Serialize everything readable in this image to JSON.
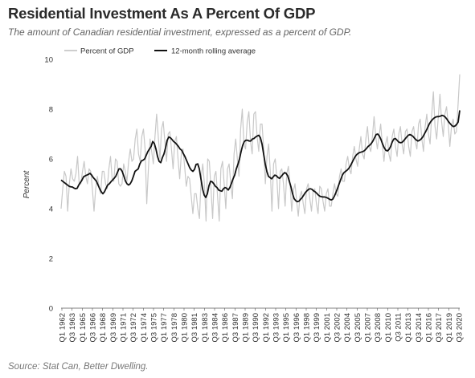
{
  "chart_data": {
    "type": "line",
    "title": "Residential Investment As A Percent Of GDP",
    "subtitle": "The amount of Canadian residential investment, expressed as a percent of GDP.",
    "source": "Source: Stat Can, Better Dwelling.",
    "ylabel": "Percent",
    "xlabel": "",
    "ylim": [
      0,
      10
    ],
    "yticks": [
      0,
      2,
      4,
      6,
      8,
      10
    ],
    "grid": false,
    "legend_position": "top-left",
    "x_tick_labels": [
      "Q1 1962",
      "Q3 1963",
      "Q1 1965",
      "Q3 1966",
      "Q1 1968",
      "Q3 1969",
      "Q1 1971",
      "Q3 1972",
      "Q1 1974",
      "Q3 1975",
      "Q1 1977",
      "Q3 1978",
      "Q1 1980",
      "Q3 1981",
      "Q1 1983",
      "Q3 1984",
      "Q1 1986",
      "Q3 1987",
      "Q1 1989",
      "Q3 1990",
      "Q1 1992",
      "Q3 1993",
      "Q1 1995",
      "Q3 1996",
      "Q1 1998",
      "Q3 1999",
      "Q1 2001",
      "Q3 2002",
      "Q1 2004",
      "Q3 2005",
      "Q1 2007",
      "Q3 2008",
      "Q1 2010",
      "Q3 2011",
      "Q1 2013",
      "Q3 2014",
      "Q1 2016",
      "Q3 2017",
      "Q1 2019",
      "Q3 2020"
    ],
    "series": [
      {
        "name": "Percent of GDP",
        "color": "#c8c8c8",
        "values": [
          4.0,
          4.8,
          5.5,
          5.3,
          3.9,
          5.0,
          5.6,
          5.2,
          5.1,
          5.4,
          6.1,
          5.0,
          5.0,
          5.5,
          5.9,
          5.3,
          5.0,
          5.6,
          5.5,
          4.8,
          3.9,
          4.8,
          5.3,
          4.9,
          4.6,
          5.5,
          5.5,
          5.0,
          4.8,
          5.6,
          6.1,
          5.2,
          5.1,
          6.0,
          5.9,
          5.0,
          4.9,
          5.0,
          5.8,
          5.5,
          5.1,
          5.9,
          6.4,
          5.9,
          6.0,
          6.8,
          7.2,
          6.2,
          5.9,
          6.9,
          7.2,
          6.4,
          4.2,
          5.6,
          6.8,
          6.3,
          5.8,
          6.9,
          7.8,
          6.9,
          6.0,
          7.2,
          7.5,
          6.7,
          5.9,
          7.0,
          7.1,
          6.4,
          5.6,
          6.7,
          6.9,
          6.0,
          5.2,
          6.2,
          6.4,
          5.7,
          4.9,
          5.3,
          5.2,
          4.5,
          3.8,
          4.6,
          4.6,
          4.0,
          3.6,
          5.2,
          5.8,
          5.0,
          3.5,
          6.0,
          5.9,
          4.8,
          3.6,
          5.3,
          5.5,
          4.5,
          3.5,
          5.6,
          5.9,
          5.0,
          4.0,
          5.6,
          5.8,
          5.0,
          4.4,
          6.2,
          6.8,
          6.0,
          5.3,
          7.2,
          8.0,
          6.6,
          6.4,
          7.5,
          7.9,
          6.7,
          6.2,
          7.8,
          7.9,
          6.9,
          6.3,
          7.4,
          7.4,
          6.4,
          5.0,
          6.1,
          6.6,
          5.5,
          3.9,
          5.8,
          6.0,
          5.2,
          4.0,
          5.5,
          5.6,
          5.0,
          4.1,
          5.4,
          5.7,
          5.0,
          3.9,
          4.7,
          5.0,
          4.3,
          3.7,
          4.5,
          4.7,
          4.2,
          3.8,
          4.8,
          5.0,
          4.4,
          3.9,
          4.7,
          4.8,
          4.2,
          3.8,
          4.9,
          4.8,
          4.3,
          3.9,
          4.6,
          4.8,
          4.1,
          4.1,
          4.6,
          5.0,
          4.6,
          4.5,
          5.3,
          5.6,
          5.1,
          5.1,
          5.8,
          6.1,
          5.6,
          5.4,
          6.1,
          6.5,
          6.0,
          5.7,
          6.4,
          6.9,
          6.2,
          6.0,
          6.8,
          7.3,
          6.5,
          6.3,
          6.9,
          7.7,
          6.9,
          6.4,
          6.9,
          7.4,
          6.6,
          5.9,
          6.6,
          6.9,
          6.2,
          5.9,
          6.9,
          7.2,
          6.5,
          6.1,
          7.0,
          7.3,
          6.6,
          6.2,
          7.1,
          7.2,
          6.5,
          6.1,
          7.1,
          7.3,
          6.7,
          6.4,
          7.4,
          7.6,
          6.8,
          6.3,
          7.3,
          7.8,
          7.0,
          6.6,
          7.8,
          8.7,
          7.3,
          6.8,
          7.7,
          8.6,
          7.5,
          6.9,
          7.8,
          8.1,
          7.4,
          6.5,
          7.3,
          7.6,
          7.0,
          7.1,
          8.2,
          9.4
        ],
        "line_width": 1.2
      },
      {
        "name": "12-month rolling average",
        "color": "#111111",
        "values": [
          5.15,
          5.1,
          5.05,
          5.0,
          4.95,
          4.9,
          4.88,
          4.87,
          4.83,
          4.8,
          4.82,
          4.95,
          5.05,
          5.15,
          5.28,
          5.32,
          5.35,
          5.38,
          5.42,
          5.35,
          5.25,
          5.18,
          5.1,
          4.95,
          4.8,
          4.68,
          4.6,
          4.68,
          4.82,
          4.95,
          5.0,
          5.08,
          5.15,
          5.22,
          5.3,
          5.45,
          5.6,
          5.6,
          5.5,
          5.32,
          5.12,
          5.0,
          4.95,
          5.0,
          5.12,
          5.3,
          5.5,
          5.55,
          5.6,
          5.8,
          5.92,
          5.95,
          6.0,
          6.15,
          6.3,
          6.4,
          6.5,
          6.7,
          6.62,
          6.4,
          6.1,
          5.9,
          5.85,
          6.05,
          6.2,
          6.45,
          6.75,
          6.88,
          6.85,
          6.78,
          6.7,
          6.65,
          6.58,
          6.5,
          6.4,
          6.35,
          6.22,
          6.1,
          5.95,
          5.8,
          5.65,
          5.55,
          5.5,
          5.58,
          5.78,
          5.8,
          5.6,
          5.2,
          4.8,
          4.55,
          4.45,
          4.6,
          4.92,
          5.1,
          5.08,
          5.0,
          4.9,
          4.85,
          4.75,
          4.72,
          4.7,
          4.8,
          4.85,
          4.82,
          4.75,
          4.85,
          5.02,
          5.2,
          5.35,
          5.6,
          5.78,
          6.0,
          6.3,
          6.55,
          6.7,
          6.75,
          6.75,
          6.72,
          6.72,
          6.8,
          6.82,
          6.88,
          6.92,
          6.95,
          6.85,
          6.6,
          6.2,
          5.8,
          5.5,
          5.3,
          5.25,
          5.2,
          5.28,
          5.35,
          5.32,
          5.25,
          5.22,
          5.3,
          5.38,
          5.45,
          5.42,
          5.32,
          5.1,
          4.88,
          4.6,
          4.4,
          4.32,
          4.28,
          4.3,
          4.38,
          4.45,
          4.55,
          4.65,
          4.72,
          4.78,
          4.8,
          4.78,
          4.72,
          4.68,
          4.62,
          4.55,
          4.5,
          4.48,
          4.47,
          4.47,
          4.45,
          4.42,
          4.38,
          4.35,
          4.38,
          4.5,
          4.65,
          4.82,
          5.0,
          5.18,
          5.35,
          5.45,
          5.5,
          5.55,
          5.62,
          5.72,
          5.85,
          5.98,
          6.1,
          6.18,
          6.23,
          6.26,
          6.28,
          6.3,
          6.35,
          6.42,
          6.5,
          6.55,
          6.62,
          6.72,
          6.85,
          6.98,
          7.0,
          6.92,
          6.78,
          6.6,
          6.45,
          6.35,
          6.32,
          6.38,
          6.5,
          6.68,
          6.8,
          6.82,
          6.75,
          6.68,
          6.65,
          6.66,
          6.72,
          6.8,
          6.88,
          6.95,
          6.98,
          6.95,
          6.9,
          6.82,
          6.76,
          6.72,
          6.75,
          6.8,
          6.88,
          7.0,
          7.12,
          7.25,
          7.4,
          7.5,
          7.58,
          7.64,
          7.68,
          7.7,
          7.7,
          7.72,
          7.75,
          7.73,
          7.68,
          7.6,
          7.5,
          7.42,
          7.35,
          7.3,
          7.32,
          7.38,
          7.48,
          7.95
        ],
        "line_width": 1.8
      }
    ]
  }
}
